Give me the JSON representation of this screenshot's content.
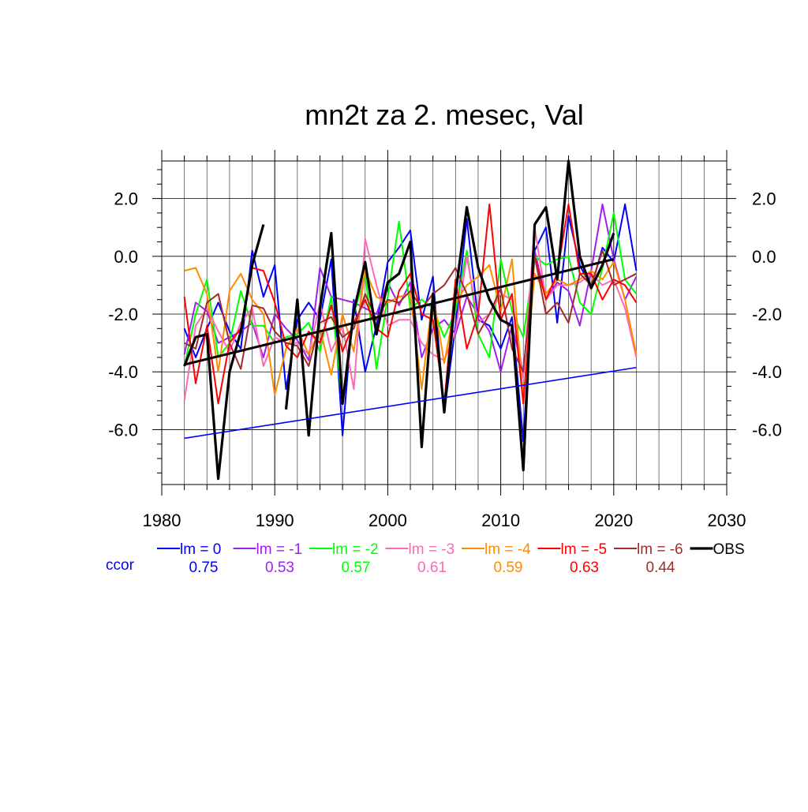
{
  "chart_data": {
    "type": "line",
    "title": "mn2t za 2. mesec, Val",
    "xlabel": "",
    "ylabel": "",
    "xlim": [
      1980,
      2030
    ],
    "ylim": [
      -7.9,
      3.3
    ],
    "xticks": [
      1980,
      1990,
      2000,
      2010,
      2020,
      2030
    ],
    "xtick_labels": [
      "1980",
      "1990",
      "2000",
      "2010",
      "2020",
      "2030"
    ],
    "yticks": [
      2.0,
      0.0,
      -2.0,
      -4.0,
      -6.0
    ],
    "ytick_labels": [
      "2.0",
      "0.0",
      "-2.0",
      "-4.0",
      "-6.0"
    ],
    "grid": true,
    "legend_position": "bottom",
    "ccor_label": "ccor",
    "ccor_color": "#0000ff",
    "series": [
      {
        "name": "lm = 0",
        "color": "#0000ff",
        "ccor": "0.75",
        "start_year": 1982,
        "values": [
          -2.5,
          -3.5,
          -2.5,
          -1.6,
          -2.6,
          -3.2,
          0.2,
          -1.4,
          -0.3,
          -4.6,
          -2.2,
          -1.6,
          -2.2,
          -0.1,
          -6.2,
          -1.5,
          -4.0,
          -2.4,
          -0.2,
          0.3,
          0.9,
          -2.2,
          -0.7,
          -5.4,
          -2.4,
          1.3,
          -2.2,
          -2.4,
          -3.2,
          -2.1,
          -6.4,
          0.2,
          1.0,
          -2.3,
          1.4,
          -0.3,
          -1.1,
          0.3,
          -0.2,
          1.8,
          -0.5
        ]
      },
      {
        "name": "lm = -1",
        "color": "#a020f0",
        "ccor": "0.53",
        "start_year": 1982,
        "values": [
          -3.4,
          -1.6,
          -1.9,
          -3.0,
          -2.8,
          -2.6,
          -2.3,
          -3.5,
          -2.0,
          -2.5,
          -2.9,
          -3.6,
          -0.4,
          -1.4,
          -1.5,
          -1.6,
          -1.8,
          -2.0,
          -0.9,
          -1.7,
          -0.9,
          -3.5,
          -2.5,
          -2.2,
          -2.7,
          -1.4,
          -2.0,
          -2.6,
          -4.0,
          -2.4,
          -4.0,
          0.2,
          -1.5,
          -0.9,
          -1.2,
          -2.4,
          -0.5,
          1.8,
          -0.1,
          -1.5,
          -0.7
        ]
      },
      {
        "name": "lm = -2",
        "color": "#00ff00",
        "ccor": "0.57",
        "start_year": 1982,
        "values": [
          -3.8,
          -2.0,
          -0.8,
          -3.5,
          -3.0,
          -1.2,
          -2.4,
          -2.4,
          -3.0,
          -2.8,
          -2.7,
          -2.3,
          -3.3,
          -1.4,
          -5.1,
          -2.0,
          -0.6,
          -3.9,
          -1.4,
          1.2,
          -1.8,
          -1.5,
          -1.8,
          -2.8,
          -1.9,
          0.2,
          -2.7,
          -3.5,
          -0.1,
          -1.9,
          -2.8,
          0.0,
          -0.3,
          -0.1,
          0.0,
          -1.6,
          -2.0,
          -0.4,
          1.5,
          -0.8,
          -1.3
        ]
      },
      {
        "name": "lm = -3",
        "color": "#ff69b4",
        "ccor": "0.61",
        "start_year": 1982,
        "values": [
          -5.0,
          -2.4,
          -1.8,
          -2.6,
          -3.3,
          -2.3,
          -1.8,
          -3.8,
          -2.8,
          -3.0,
          -3.0,
          -3.4,
          -1.6,
          -3.3,
          -2.4,
          -4.6,
          0.6,
          -1.0,
          -2.4,
          -2.2,
          -2.2,
          -3.0,
          -3.4,
          -3.6,
          -2.6,
          0.0,
          -2.3,
          -2.0,
          -1.3,
          -1.5,
          -4.2,
          1.0,
          -1.5,
          -1.0,
          -1.0,
          -0.9,
          -0.6,
          -1.0,
          -0.8,
          -1.8,
          -3.5
        ]
      },
      {
        "name": "lm = -4",
        "color": "#ff8c00",
        "ccor": "0.59",
        "start_year": 1982,
        "values": [
          -0.5,
          -0.4,
          -1.3,
          -4.0,
          -1.2,
          -0.6,
          -1.5,
          -2.0,
          -4.8,
          -3.2,
          -2.5,
          -3.4,
          -2.5,
          -4.1,
          -2.0,
          -3.3,
          -0.5,
          -1.4,
          -1.6,
          -1.4,
          -1.3,
          -4.6,
          -1.3,
          -3.7,
          -1.6,
          -1.0,
          -0.7,
          -0.3,
          -1.9,
          -0.1,
          -5.0,
          -0.6,
          -1.3,
          -0.8,
          -1.0,
          -0.8,
          -0.5,
          -0.8,
          -0.2,
          -1.5,
          -3.4
        ]
      },
      {
        "name": "lm = -5",
        "color": "#ff0000",
        "ccor": "0.63",
        "start_year": 1982,
        "values": [
          -1.4,
          -4.4,
          -2.4,
          -5.1,
          -3.0,
          -2.5,
          -0.4,
          -0.5,
          -1.6,
          -3.1,
          -3.5,
          -2.6,
          -3.0,
          -1.7,
          -3.3,
          -2.3,
          -1.5,
          -2.5,
          -2.8,
          -1.2,
          -0.6,
          -2.0,
          -2.2,
          -5.1,
          -0.8,
          -3.2,
          -2.0,
          1.8,
          -2.2,
          -1.3,
          -5.1,
          0.0,
          -1.5,
          -0.6,
          1.8,
          -0.6,
          -0.6,
          -1.5,
          -0.8,
          -1.0,
          -1.6
        ]
      },
      {
        "name": "lm = -6",
        "color": "#a52a2a",
        "ccor": "0.44",
        "start_year": 1982,
        "values": [
          -3.0,
          -3.2,
          -1.6,
          -1.3,
          -3.0,
          -3.9,
          -1.7,
          -1.8,
          -2.6,
          -3.0,
          -3.1,
          -3.8,
          -2.3,
          -2.1,
          -2.8,
          -2.5,
          -1.3,
          -2.2,
          -1.5,
          -1.6,
          -1.2,
          -1.8,
          -1.3,
          -1.0,
          -0.4,
          -1.3,
          -2.7,
          -2.0,
          -1.1,
          -3.2,
          -4.0,
          0.0,
          -2.0,
          -1.6,
          -2.3,
          -0.6,
          -1.0,
          0.2,
          -1.0,
          -0.8,
          -0.6
        ]
      },
      {
        "name": "OBS",
        "color": "#000000",
        "ccor": "",
        "start_year": 1982,
        "values": [
          -3.8,
          -2.8,
          -2.7,
          -7.7,
          -4.0,
          -2.6,
          -0.3,
          1.1,
          null,
          -5.3,
          -1.5,
          -6.2,
          -1.8,
          0.8,
          -5.1,
          -1.9,
          -0.2,
          -2.7,
          -0.9,
          -0.6,
          0.5,
          -6.6,
          -1.3,
          -5.4,
          -1.3,
          1.7,
          -0.4,
          -1.5,
          -2.2,
          -2.4,
          -7.4,
          1.1,
          1.7,
          -0.8,
          3.3,
          0.0,
          -1.1,
          -0.3,
          0.8,
          null,
          null
        ]
      }
    ],
    "trend_lines": [
      {
        "name": "OBS trend",
        "color": "#000000",
        "x": [
          1982,
          2020
        ],
        "y": [
          -3.75,
          -0.1
        ]
      },
      {
        "name": "lm = 0 trend",
        "color": "#0000ff",
        "x": [
          1982,
          2022
        ],
        "y": [
          -6.3,
          -3.85
        ]
      }
    ]
  }
}
